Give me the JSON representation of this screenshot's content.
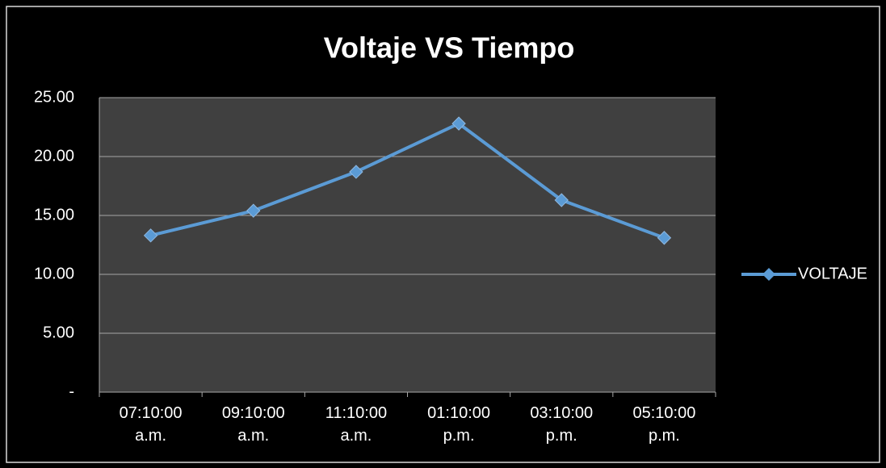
{
  "chart_data": {
    "type": "line",
    "title": "Voltaje VS Tiempo",
    "categories": [
      "07:10:00 a.m.",
      "09:10:00 a.m.",
      "11:10:00 a.m.",
      "01:10:00 p.m.",
      "03:10:00 p.m.",
      "05:10:00 p.m."
    ],
    "series": [
      {
        "name": "VOLTAJE",
        "color": "#5b9bd5",
        "values": [
          13.3,
          15.4,
          18.7,
          22.8,
          16.3,
          13.1
        ]
      }
    ],
    "ylim": [
      0,
      25
    ],
    "yticks": [
      {
        "value": 0,
        "label": "-"
      },
      {
        "value": 5,
        "label": "5.00"
      },
      {
        "value": 10,
        "label": "10.00"
      },
      {
        "value": 15,
        "label": "15.00"
      },
      {
        "value": 20,
        "label": "20.00"
      },
      {
        "value": 25,
        "label": "25.00"
      }
    ],
    "grid": true,
    "legend": "right"
  }
}
